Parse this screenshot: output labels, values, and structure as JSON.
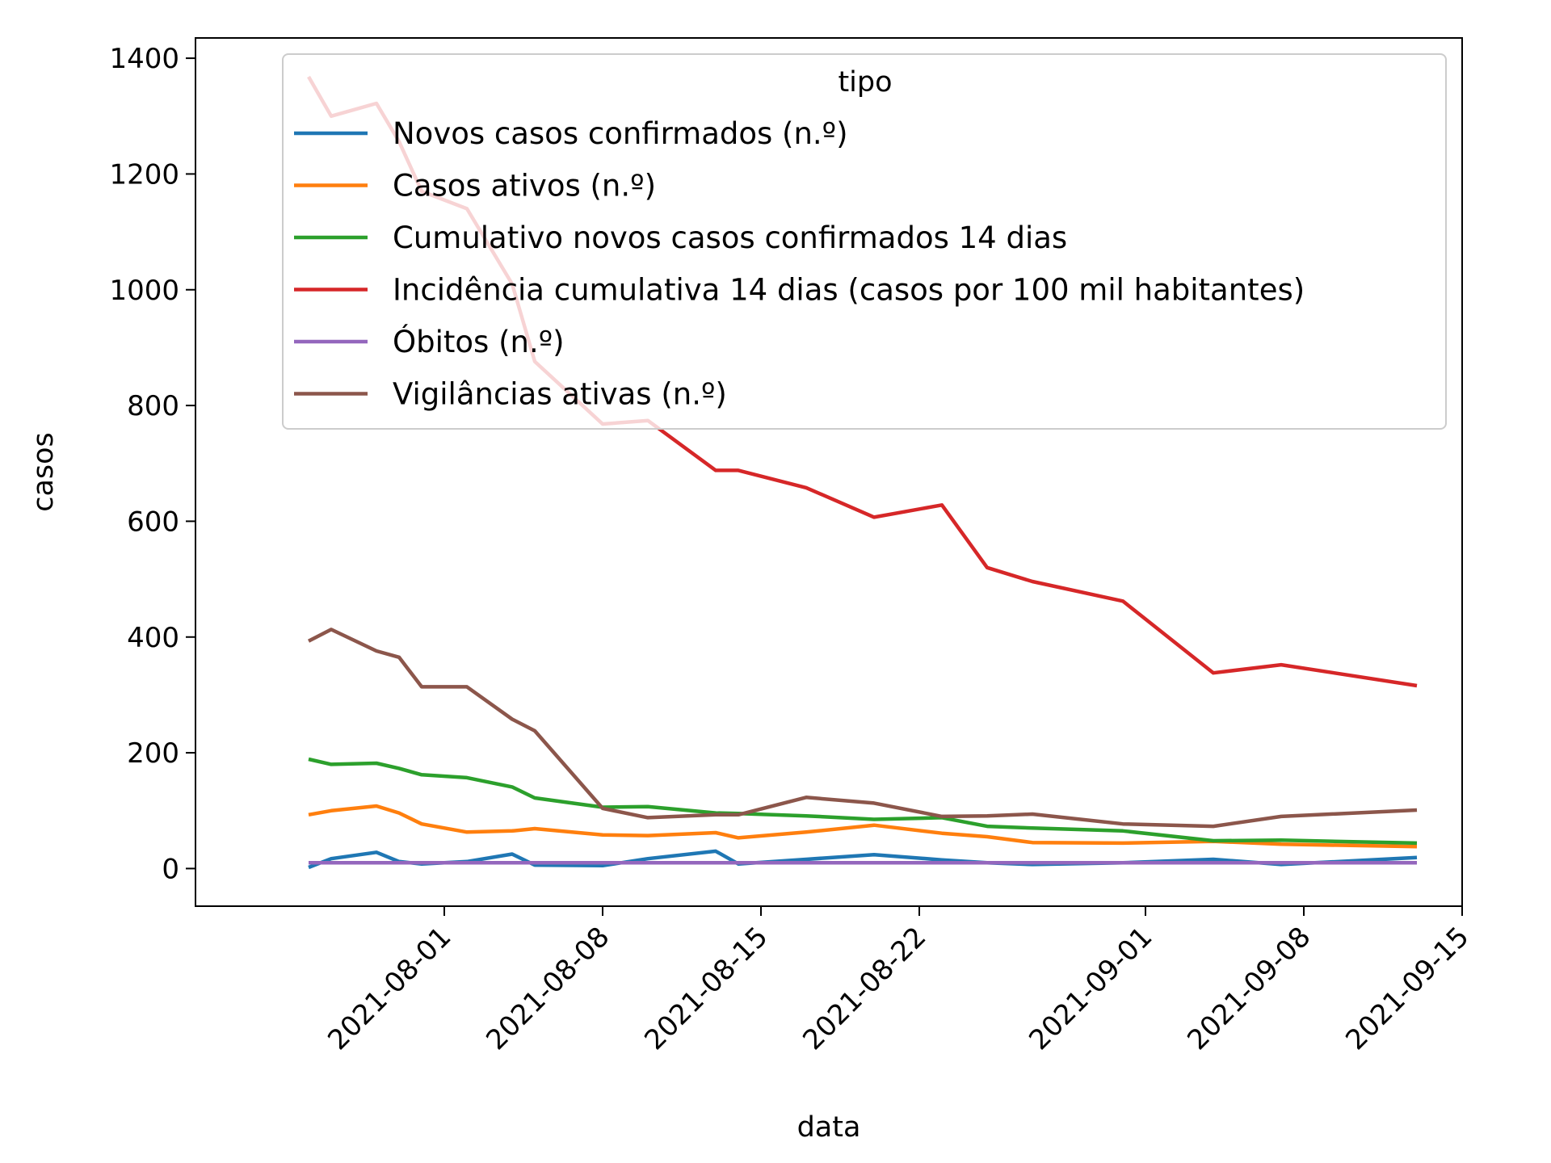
{
  "chart_data": {
    "type": "line",
    "xlabel": "data",
    "ylabel": "casos",
    "ylim": [
      -65,
      1435
    ],
    "xlim": [
      "2021-07-21",
      "2021-09-15"
    ],
    "grid": false,
    "yticks": [
      0,
      200,
      400,
      600,
      800,
      1000,
      1200,
      1400
    ],
    "xticks": [
      "2021-08-01",
      "2021-08-08",
      "2021-08-15",
      "2021-08-22",
      "2021-09-01",
      "2021-09-08",
      "2021-09-15"
    ],
    "legend": {
      "title": "tipo",
      "position": "top-right"
    },
    "x": [
      "2021-07-26",
      "2021-07-27",
      "2021-07-29",
      "2021-07-30",
      "2021-07-31",
      "2021-08-02",
      "2021-08-04",
      "2021-08-05",
      "2021-08-08",
      "2021-08-10",
      "2021-08-13",
      "2021-08-14",
      "2021-08-17",
      "2021-08-20",
      "2021-08-23",
      "2021-08-25",
      "2021-08-27",
      "2021-08-31",
      "2021-09-04",
      "2021-09-07",
      "2021-09-13"
    ],
    "series": [
      {
        "name": "Novos casos confirmados (n.º)",
        "color": "#1f77b4",
        "values": [
          2,
          17,
          28,
          12,
          8,
          12,
          25,
          6,
          5,
          17,
          30,
          8,
          16,
          24,
          15,
          10,
          7,
          10,
          16,
          7,
          19
        ]
      },
      {
        "name": "Casos ativos (n.º)",
        "color": "#ff7f0e",
        "values": [
          93,
          100,
          108,
          96,
          77,
          63,
          65,
          69,
          58,
          57,
          62,
          53,
          63,
          75,
          61,
          55,
          45,
          44,
          47,
          42,
          38
        ]
      },
      {
        "name": "Cumulativo novos casos confirmados 14 dias",
        "color": "#2ca02c",
        "values": [
          189,
          180,
          182,
          173,
          162,
          157,
          141,
          122,
          106,
          107,
          96,
          95,
          91,
          85,
          88,
          73,
          70,
          65,
          48,
          49,
          44
        ]
      },
      {
        "name": "Incidência cumulativa 14 dias (casos por 100 mil habitantes)",
        "color": "#d62728",
        "values": [
          1368,
          1300,
          1322,
          1256,
          1170,
          1140,
          1010,
          876,
          768,
          774,
          688,
          688,
          658,
          607,
          628,
          520,
          496,
          462,
          338,
          352,
          316
        ]
      },
      {
        "name": "Óbitos (n.º)",
        "color": "#9467bd",
        "values": [
          10,
          10,
          10,
          10,
          10,
          10,
          10,
          10,
          10,
          10,
          10,
          10,
          10,
          10,
          10,
          10,
          10,
          10,
          10,
          10,
          10
        ]
      },
      {
        "name": "Vigilâncias ativas (n.º)",
        "color": "#8c564b",
        "values": [
          393,
          413,
          376,
          365,
          314,
          314,
          258,
          238,
          104,
          88,
          93,
          93,
          123,
          113,
          90,
          91,
          94,
          77,
          73,
          90,
          101
        ]
      }
    ]
  }
}
